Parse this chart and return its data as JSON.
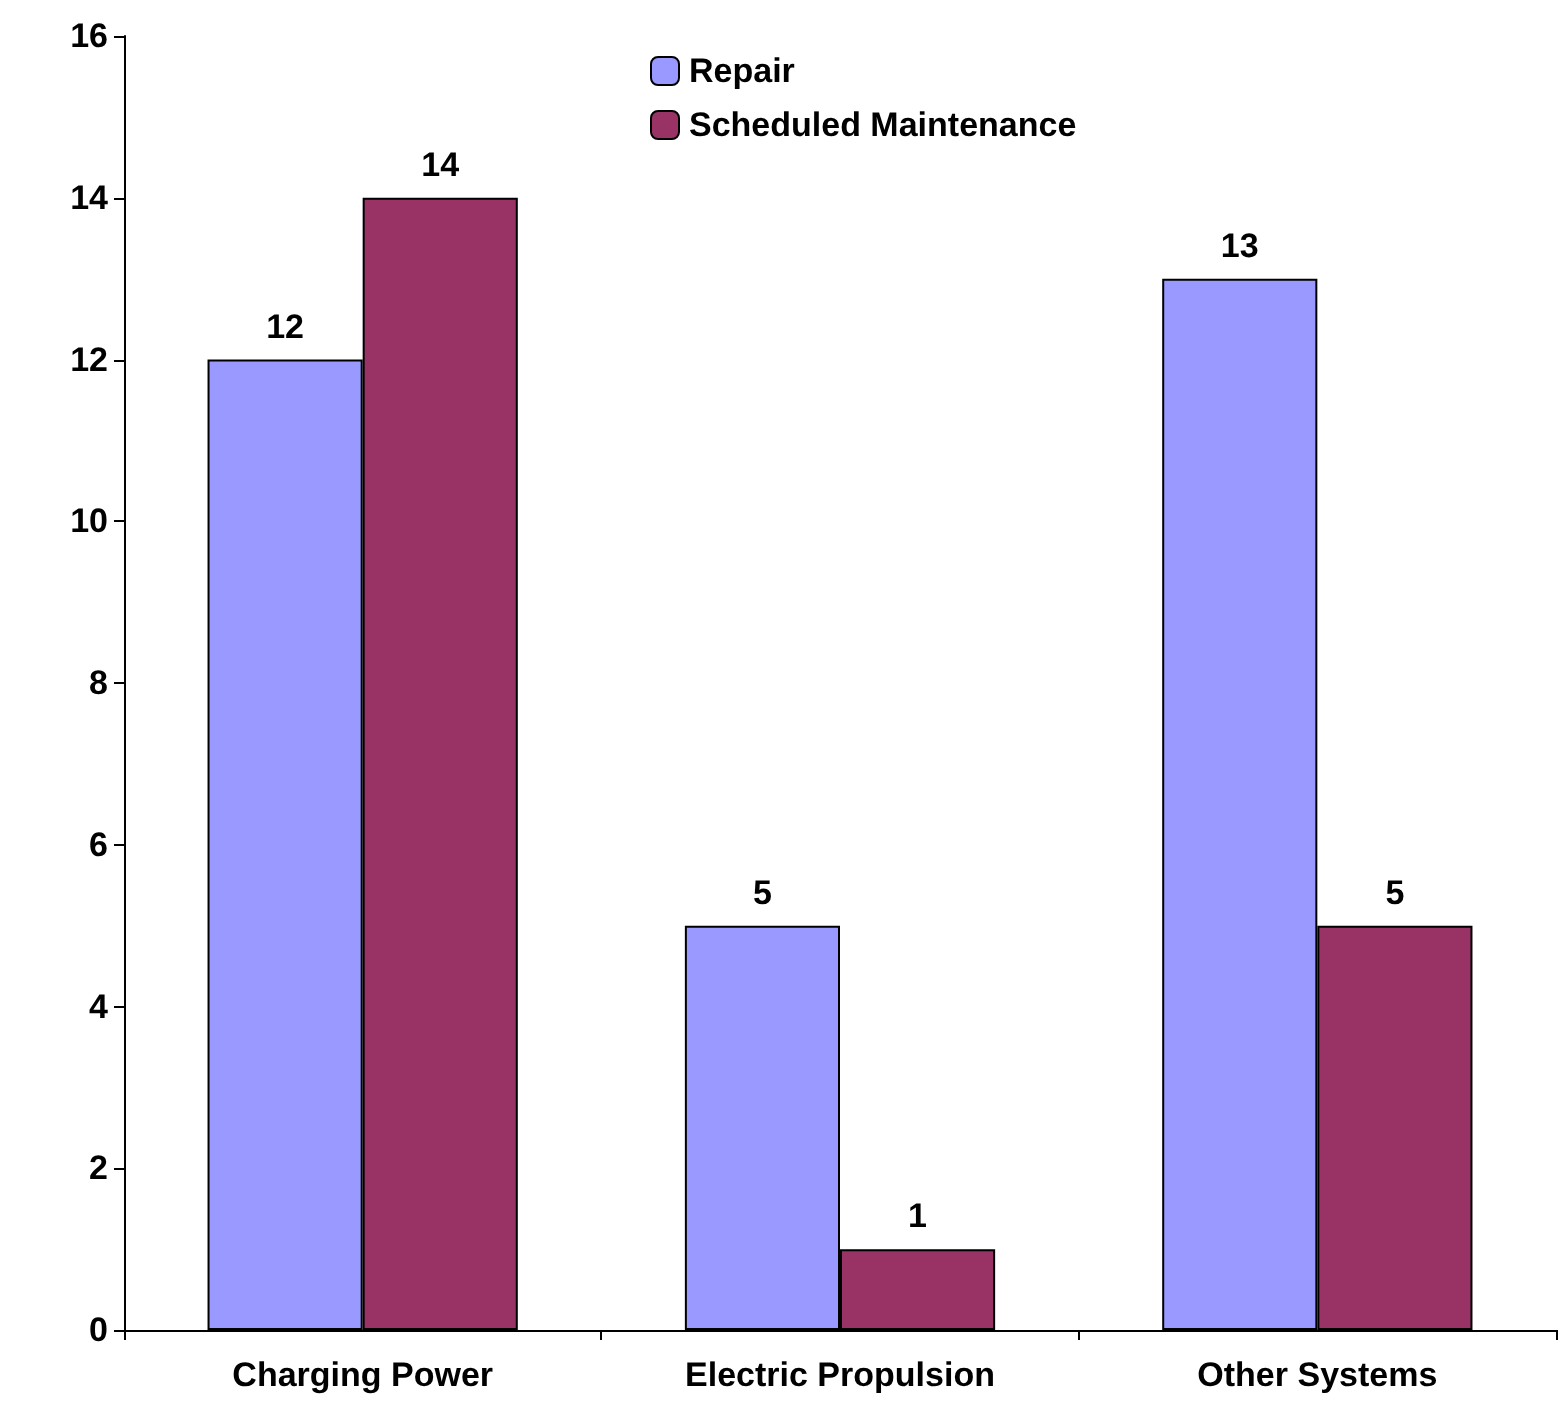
{
  "chart_data": {
    "type": "bar",
    "categories": [
      "Charging Power",
      "Electric Propulsion",
      "Other Systems"
    ],
    "series": [
      {
        "name": "Repair",
        "color": "#9999ff",
        "values": [
          12,
          5,
          13
        ]
      },
      {
        "name": "Scheduled Maintenance",
        "color": "#993366",
        "values": [
          14,
          1,
          5
        ]
      }
    ],
    "ylim": [
      0,
      16
    ],
    "yticks": [
      0,
      2,
      4,
      6,
      8,
      10,
      12,
      14,
      16
    ],
    "grid": false,
    "legend": "top",
    "data_labels": true
  }
}
